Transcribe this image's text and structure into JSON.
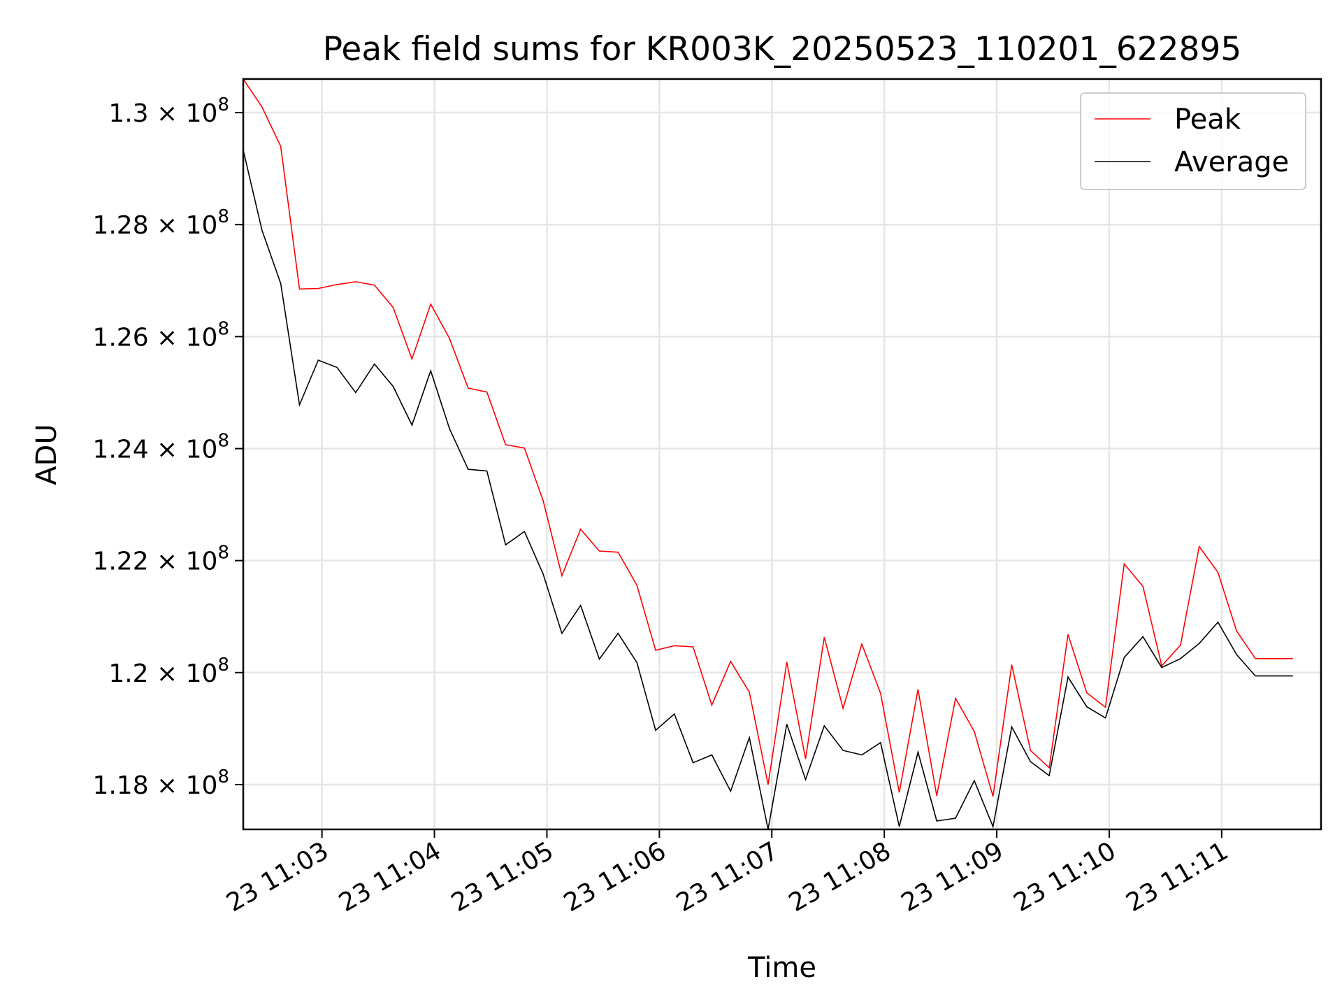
{
  "chart_data": {
    "type": "line",
    "title": "Peak field sums for KR003K_20250523_110201_622895",
    "xlabel": "Time",
    "ylabel": "ADU",
    "x_start": "2025-05-23 11:02:18",
    "x_step_seconds": 10,
    "xlim": [
      "2025-05-23 11:02:18",
      "2025-05-23 11:11:53"
    ],
    "x_ticks": [
      {
        "time": "2025-05-23 11:03",
        "label": "23 11:03"
      },
      {
        "time": "2025-05-23 11:04",
        "label": "23 11:04"
      },
      {
        "time": "2025-05-23 11:05",
        "label": "23 11:05"
      },
      {
        "time": "2025-05-23 11:06",
        "label": "23 11:06"
      },
      {
        "time": "2025-05-23 11:07",
        "label": "23 11:07"
      },
      {
        "time": "2025-05-23 11:08",
        "label": "23 11:08"
      },
      {
        "time": "2025-05-23 11:09",
        "label": "23 11:09"
      },
      {
        "time": "2025-05-23 11:10",
        "label": "23 11:10"
      },
      {
        "time": "2025-05-23 11:11",
        "label": "23 11:11"
      }
    ],
    "ylim": [
      117200000,
      130600000
    ],
    "y_ticks": [
      {
        "value": 118000000,
        "mantissa": "1.18",
        "exp": "8"
      },
      {
        "value": 120000000,
        "mantissa": "1.2",
        "exp": "8"
      },
      {
        "value": 122000000,
        "mantissa": "1.22",
        "exp": "8"
      },
      {
        "value": 124000000,
        "mantissa": "1.24",
        "exp": "8"
      },
      {
        "value": 126000000,
        "mantissa": "1.26",
        "exp": "8"
      },
      {
        "value": 128000000,
        "mantissa": "1.28",
        "exp": "8"
      },
      {
        "value": 130000000,
        "mantissa": "1.3",
        "exp": "8"
      }
    ],
    "grid": true,
    "legend_position": "top-right",
    "series": [
      {
        "name": "Peak",
        "color": "#ff0000",
        "values": [
          130600000,
          130100000,
          129400000,
          126850000,
          126860000,
          126930000,
          126980000,
          126920000,
          126520000,
          125600000,
          126580000,
          125970000,
          125080000,
          125010000,
          124070000,
          124010000,
          123070000,
          121730000,
          122560000,
          122170000,
          122150000,
          121560000,
          120400000,
          120480000,
          120460000,
          119420000,
          120200000,
          119650000,
          118000000,
          120190000,
          118460000,
          120630000,
          119360000,
          120510000,
          119630000,
          117860000,
          119700000,
          117800000,
          119540000,
          118950000,
          117790000,
          120140000,
          118610000,
          118300000,
          120680000,
          119640000,
          119380000,
          121940000,
          121540000,
          120120000,
          120490000,
          122250000,
          121790000,
          120740000,
          120250000,
          120250000,
          120250000
        ]
      },
      {
        "name": "Average",
        "color": "#000000",
        "values": [
          129330000,
          127900000,
          126950000,
          124780000,
          125580000,
          125450000,
          125000000,
          125510000,
          125110000,
          124420000,
          125390000,
          124360000,
          123630000,
          123600000,
          122280000,
          122520000,
          121760000,
          120700000,
          121200000,
          120240000,
          120700000,
          120180000,
          118970000,
          119260000,
          118390000,
          118530000,
          117880000,
          118840000,
          117200000,
          119080000,
          118090000,
          119050000,
          118610000,
          118530000,
          118750000,
          117250000,
          118580000,
          117350000,
          117400000,
          118070000,
          117250000,
          119030000,
          118410000,
          118160000,
          119920000,
          119390000,
          119190000,
          120270000,
          120640000,
          120090000,
          120250000,
          120520000,
          120900000,
          120320000,
          119940000,
          119940000,
          119940000
        ]
      }
    ]
  }
}
